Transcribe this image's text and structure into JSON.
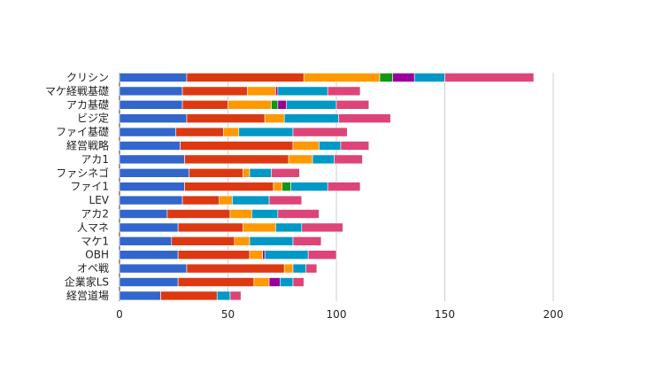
{
  "chart_data": {
    "type": "bar",
    "orientation": "horizontal",
    "stacked": true,
    "categories": [
      "クリシン",
      "マケ経戦基礎",
      "アカ基礎",
      "ビジ定",
      "ファイ基礎",
      "経営戦略",
      "アカ1",
      "ファシネゴ",
      "ファイ1",
      "LEV",
      "アカ2",
      "人マネ",
      "マケ1",
      "OBH",
      "オペ戦",
      "企業家LS",
      "経営道場"
    ],
    "series": [
      {
        "color": "#3366cc",
        "values": [
          31,
          29,
          29,
          31,
          26,
          28,
          30,
          32,
          30,
          29,
          22,
          27,
          24,
          27,
          31,
          27,
          19
        ]
      },
      {
        "color": "#dc3912",
        "values": [
          54,
          30,
          21,
          36,
          22,
          52,
          48,
          25,
          41,
          17,
          29,
          30,
          29,
          33,
          45,
          35,
          26
        ]
      },
      {
        "color": "#ff9900",
        "values": [
          35,
          13,
          20,
          9,
          7,
          12,
          11,
          3,
          4,
          6,
          10,
          15,
          7,
          6,
          4,
          7,
          0
        ]
      },
      {
        "color": "#109618",
        "values": [
          6,
          0,
          3,
          0,
          0,
          0,
          0,
          0,
          4,
          0,
          0,
          0,
          0,
          0,
          0,
          0,
          0
        ]
      },
      {
        "color": "#990099",
        "values": [
          10,
          1,
          4,
          0,
          0,
          0,
          0,
          0,
          0,
          0,
          0,
          0,
          0,
          1,
          0,
          5,
          0
        ]
      },
      {
        "color": "#0099c6",
        "values": [
          14,
          23,
          23,
          25,
          25,
          10,
          10,
          10,
          17,
          17,
          12,
          12,
          20,
          20,
          6,
          6,
          6
        ]
      },
      {
        "color": "#dd4477",
        "values": [
          41,
          15,
          15,
          24,
          25,
          13,
          13,
          13,
          15,
          15,
          19,
          19,
          13,
          13,
          5,
          5,
          5
        ]
      }
    ],
    "xlim": [
      0,
      200
    ],
    "xticks": [
      0,
      50,
      100,
      150,
      200
    ],
    "grid": true,
    "legend": "none"
  }
}
